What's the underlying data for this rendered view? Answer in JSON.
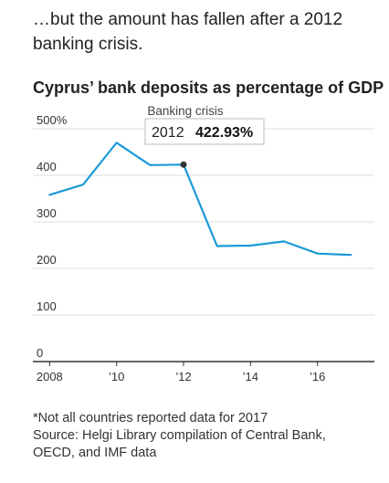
{
  "intro_text": "…but the amount has fallen after a 2012 banking crisis.",
  "colors": {
    "line": "#1b9ad8",
    "grid": "#dddddd",
    "axis": "#333333",
    "text": "#333333"
  },
  "chart_data": {
    "type": "line",
    "title": "Cyprus’ bank deposits as percentage of GDP",
    "xlabel": "",
    "ylabel": "",
    "ylim": [
      0,
      500
    ],
    "xlim": [
      2007.5,
      2017.7
    ],
    "y_ticks": [
      {
        "value": 0,
        "label": "0"
      },
      {
        "value": 100,
        "label": "100"
      },
      {
        "value": 200,
        "label": "200"
      },
      {
        "value": 300,
        "label": "300"
      },
      {
        "value": 400,
        "label": "400"
      },
      {
        "value": 500,
        "label": "500%"
      }
    ],
    "x_ticks": [
      {
        "value": 2008,
        "label": "2008"
      },
      {
        "value": 2010,
        "label": "’10"
      },
      {
        "value": 2012,
        "label": "’12"
      },
      {
        "value": 2014,
        "label": "’14"
      },
      {
        "value": 2016,
        "label": "’16"
      }
    ],
    "x": [
      2008,
      2009,
      2010,
      2011,
      2012,
      2013,
      2014,
      2015,
      2016,
      2017
    ],
    "series": [
      {
        "values": [
          358,
          380,
          470,
          422,
          422.93,
          248,
          249,
          258,
          232,
          229
        ]
      }
    ],
    "grid": true,
    "annotation": {
      "text": "Banking crisis",
      "x": 2012
    },
    "tooltip": {
      "year": "2012",
      "value": "422.93%",
      "x": 2012,
      "y": 422.93
    }
  },
  "footnote": {
    "lines": [
      "*Not all countries reported data for 2017",
      "Source: Helgi Library compilation of Central Bank,",
      "OECD, and IMF data"
    ]
  }
}
